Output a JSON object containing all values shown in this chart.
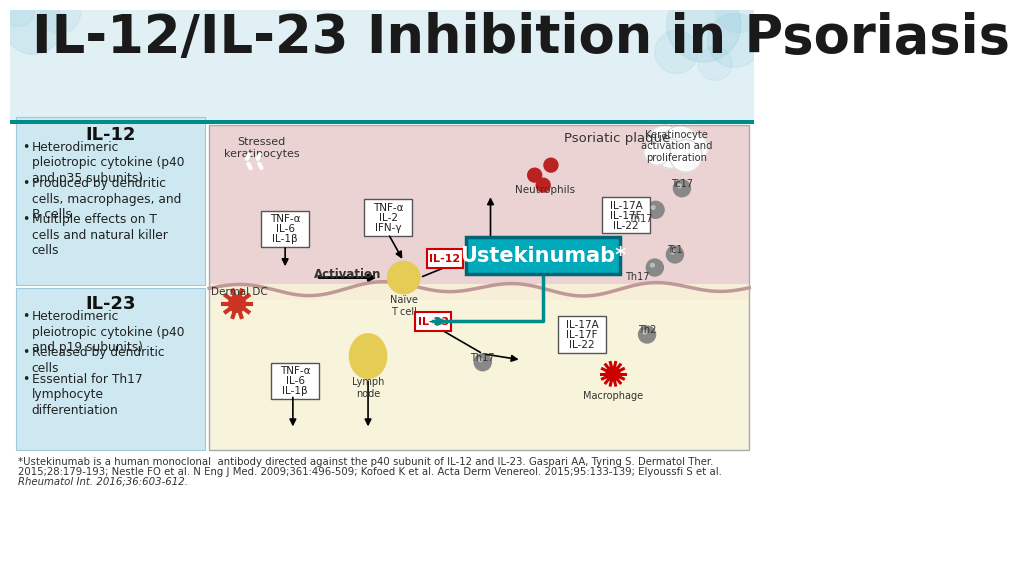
{
  "title": "IL-12/IL-23 Inhibition in Psoriasis",
  "title_fontsize": 38,
  "title_color": "#1a1a1a",
  "bg_color": "#ffffff",
  "il12_title": "IL-12",
  "il12_bullets": [
    "Heterodimeric\npleiotropic cytokine (p40\nand p35 subunits)",
    "Produced by dendritic\ncells, macrophages, and\nB cells",
    "Multiple effects on T\ncells and natural killer\ncells"
  ],
  "il23_title": "IL-23",
  "il23_bullets": [
    "Heterodimeric\npleiotropic cytokine (p40\nand p19 subunits)",
    "Released by dendritic\ncells",
    "Essential for Th17\nlymphocyte\ndifferentiation"
  ],
  "ustekinumab_label": "Ustekinumab*",
  "ustekinumab_bg": "#00aabb",
  "ustekinumab_text_color": "#ffffff",
  "footnote_line1": "*Ustekinumab is a human monoclonal  antibody directed against the p40 subunit of IL-12 and IL-23. Gaspari AA, Tyring S. Dermatol Ther.",
  "footnote_line2": "2015;28:179-193; Nestle FO et al. N Eng J Med. 2009;361:496-509; Kofoed K et al. Acta Derm Venereol. 2015;95:133-139; Elyoussfi S et al.",
  "footnote_line3": "Rheumatol Int. 2016;36:603-612.",
  "teal_line_color": "#008b8b",
  "left_panel_bg": "#cde8f0",
  "divider_color": "#008b8b",
  "header_bg": "#e0f0f5"
}
